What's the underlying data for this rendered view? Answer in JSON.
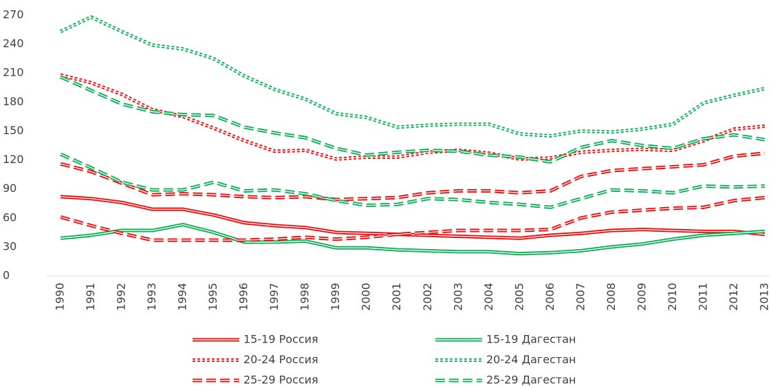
{
  "chart_data": {
    "type": "line",
    "categories": [
      "1990",
      "1991",
      "1992",
      "1993",
      "1994",
      "1995",
      "1996",
      "1997",
      "1998",
      "1999",
      "2000",
      "2001",
      "2002",
      "2003",
      "2004",
      "2005",
      "2006",
      "2007",
      "2008",
      "2009",
      "2010",
      "2011",
      "2012",
      "2013"
    ],
    "ylim": [
      0,
      270
    ],
    "yticks": [
      0,
      30,
      60,
      90,
      120,
      150,
      180,
      210,
      240,
      270
    ],
    "grid": false,
    "legend": "bottom",
    "series": [
      {
        "name": "15-19 Россия",
        "color": "#ff0000",
        "dash": "solid",
        "values": [
          82,
          80,
          76,
          69,
          69,
          63,
          55,
          52,
          50,
          45,
          44,
          43,
          42,
          41,
          40,
          39,
          42,
          44,
          47,
          48,
          47,
          46,
          46,
          43
        ]
      },
      {
        "name": "15-19 Дагестан",
        "color": "#00b050",
        "dash": "solid",
        "values": [
          39,
          42,
          47,
          47,
          53,
          45,
          35,
          35,
          36,
          29,
          29,
          27,
          26,
          25,
          25,
          23,
          24,
          26,
          30,
          33,
          38,
          42,
          44,
          46
        ]
      },
      {
        "name": "20-24 Россия",
        "color": "#ff0000",
        "dash": "dot",
        "values": [
          208,
          200,
          188,
          172,
          165,
          153,
          140,
          129,
          130,
          121,
          123,
          123,
          128,
          130,
          127,
          121,
          122,
          128,
          130,
          131,
          130,
          140,
          152,
          155
        ]
      },
      {
        "name": "20-24 Дагестан",
        "color": "#00b050",
        "dash": "dot",
        "values": [
          253,
          268,
          253,
          239,
          235,
          225,
          207,
          193,
          183,
          168,
          164,
          154,
          156,
          157,
          157,
          147,
          145,
          150,
          149,
          152,
          157,
          179,
          187,
          194
        ]
      },
      {
        "name": "25-29 Россия",
        "color": "#ff0000",
        "dash": "dash",
        "values": [
          116,
          108,
          96,
          84,
          85,
          84,
          82,
          81,
          82,
          79,
          80,
          81,
          86,
          88,
          88,
          86,
          88,
          103,
          109,
          111,
          113,
          115,
          124,
          127
        ]
      },
      {
        "name": "25-29 Дагестан",
        "color": "#00b050",
        "dash": "dash",
        "values": [
          206,
          192,
          178,
          170,
          167,
          166,
          154,
          148,
          143,
          132,
          125,
          128,
          130,
          129,
          125,
          123,
          118,
          133,
          140,
          135,
          132,
          142,
          146,
          141
        ]
      },
      {
        "color": "#ff0000",
        "dash": "dash",
        "values": [
          61,
          52,
          44,
          37,
          37,
          37,
          37,
          38,
          40,
          38,
          40,
          43,
          45,
          47,
          47,
          47,
          48,
          60,
          66,
          68,
          70,
          71,
          78,
          81
        ]
      },
      {
        "color": "#00b050",
        "dash": "dash",
        "values": [
          126,
          112,
          97,
          89,
          89,
          97,
          88,
          89,
          85,
          78,
          73,
          74,
          80,
          79,
          76,
          74,
          71,
          80,
          89,
          88,
          86,
          93,
          92,
          93
        ]
      }
    ]
  }
}
